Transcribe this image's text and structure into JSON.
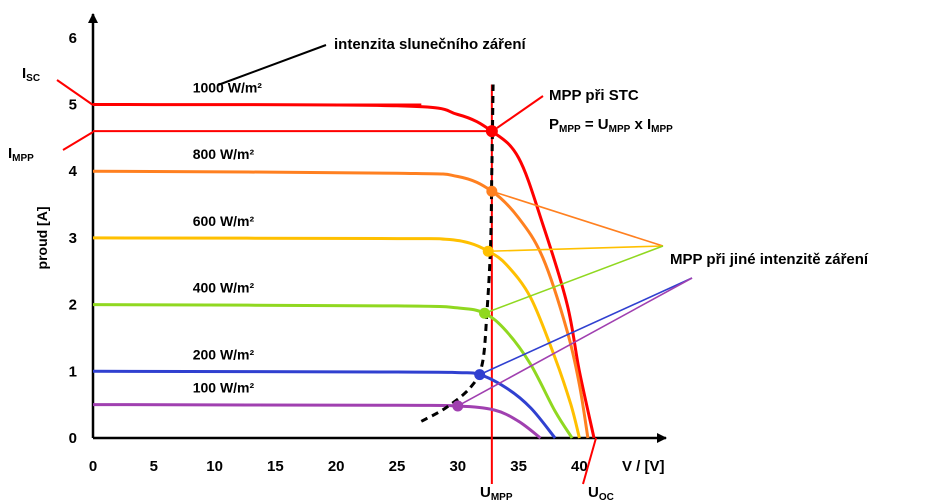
{
  "chart_data": {
    "type": "line",
    "title": "",
    "xlabel": "V / [V]",
    "ylabel": "proud [A]",
    "xlim": [
      0,
      47
    ],
    "ylim": [
      0,
      6
    ],
    "xticks": [
      0,
      5,
      10,
      15,
      20,
      25,
      30,
      35,
      40
    ],
    "yticks": [
      0,
      1,
      2,
      3,
      4,
      5,
      6
    ],
    "grid": false,
    "series": [
      {
        "name": "1000 W/m²",
        "color": "#ff0000",
        "isc": 5.0,
        "voc": 41.2,
        "mpp": [
          32.8,
          4.6
        ],
        "x": [
          0,
          25,
          30,
          32.8,
          35,
          37,
          39,
          40,
          41.2
        ],
        "y": [
          5.0,
          4.98,
          4.85,
          4.6,
          4.2,
          3.2,
          2.0,
          1.0,
          0
        ]
      },
      {
        "name": "800 W/m²",
        "color": "#ff8020",
        "isc": 4.0,
        "voc": 40.7,
        "mpp": [
          32.8,
          3.7
        ],
        "x": [
          0,
          25,
          30,
          32.8,
          35,
          37,
          39,
          40,
          40.7
        ],
        "y": [
          4.0,
          3.97,
          3.92,
          3.7,
          3.3,
          2.7,
          1.6,
          0.8,
          0
        ]
      },
      {
        "name": "600 W/m²",
        "color": "#ffc000",
        "isc": 3.0,
        "voc": 40.0,
        "mpp": [
          32.5,
          2.8
        ],
        "x": [
          0,
          25,
          29,
          31,
          32.5,
          34,
          36,
          38,
          39.3,
          40.0
        ],
        "y": [
          3.0,
          2.99,
          2.98,
          2.92,
          2.8,
          2.6,
          2.1,
          1.2,
          0.5,
          0
        ]
      },
      {
        "name": "400 W/m²",
        "color": "#90d820",
        "isc": 2.0,
        "voc": 39.4,
        "mpp": [
          32.2,
          1.87
        ],
        "x": [
          0,
          25,
          30,
          32.2,
          34,
          36,
          38,
          39.4
        ],
        "y": [
          2.0,
          1.98,
          1.95,
          1.87,
          1.6,
          1.1,
          0.4,
          0
        ]
      },
      {
        "name": "200 W/m²",
        "color": "#3040d0",
        "isc": 1.0,
        "voc": 38.0,
        "mpp": [
          31.8,
          0.95
        ],
        "x": [
          0,
          25,
          30,
          31.8,
          34,
          36,
          38.0
        ],
        "y": [
          1.0,
          0.99,
          0.98,
          0.95,
          0.75,
          0.45,
          0
        ]
      },
      {
        "name": "100 W/m²",
        "color": "#a040b0",
        "isc": 0.5,
        "voc": 36.8,
        "mpp": [
          30.0,
          0.48
        ],
        "x": [
          0,
          25,
          30,
          33,
          35,
          36.8
        ],
        "y": [
          0.5,
          0.49,
          0.48,
          0.42,
          0.25,
          0
        ]
      }
    ],
    "mpp_locus": {
      "x": [
        27.0,
        29.0,
        31.0,
        32.0,
        32.4,
        32.7,
        32.8,
        32.9
      ],
      "y": [
        0.25,
        0.45,
        0.75,
        1.1,
        1.9,
        2.9,
        4.0,
        5.3
      ]
    },
    "annotations": {
      "irradiance": "intenzita slunečního záření",
      "mpp_stc": "MPP při STC",
      "p_mpp_formula": {
        "lhs": "P",
        "lhs_sub": "MPP",
        "eq": " = U",
        "u_sub": "MPP",
        "x": " x I",
        "i_sub": "MPP"
      },
      "mpp_other": "MPP při jiné intenzitě záření",
      "isc": {
        "main": "I",
        "sub": "SC"
      },
      "impp": {
        "main": "I",
        "sub": "MPP"
      },
      "umpp": {
        "main": "U",
        "sub": "MPP"
      },
      "uoc": {
        "main": "U",
        "sub": "OC"
      }
    }
  }
}
